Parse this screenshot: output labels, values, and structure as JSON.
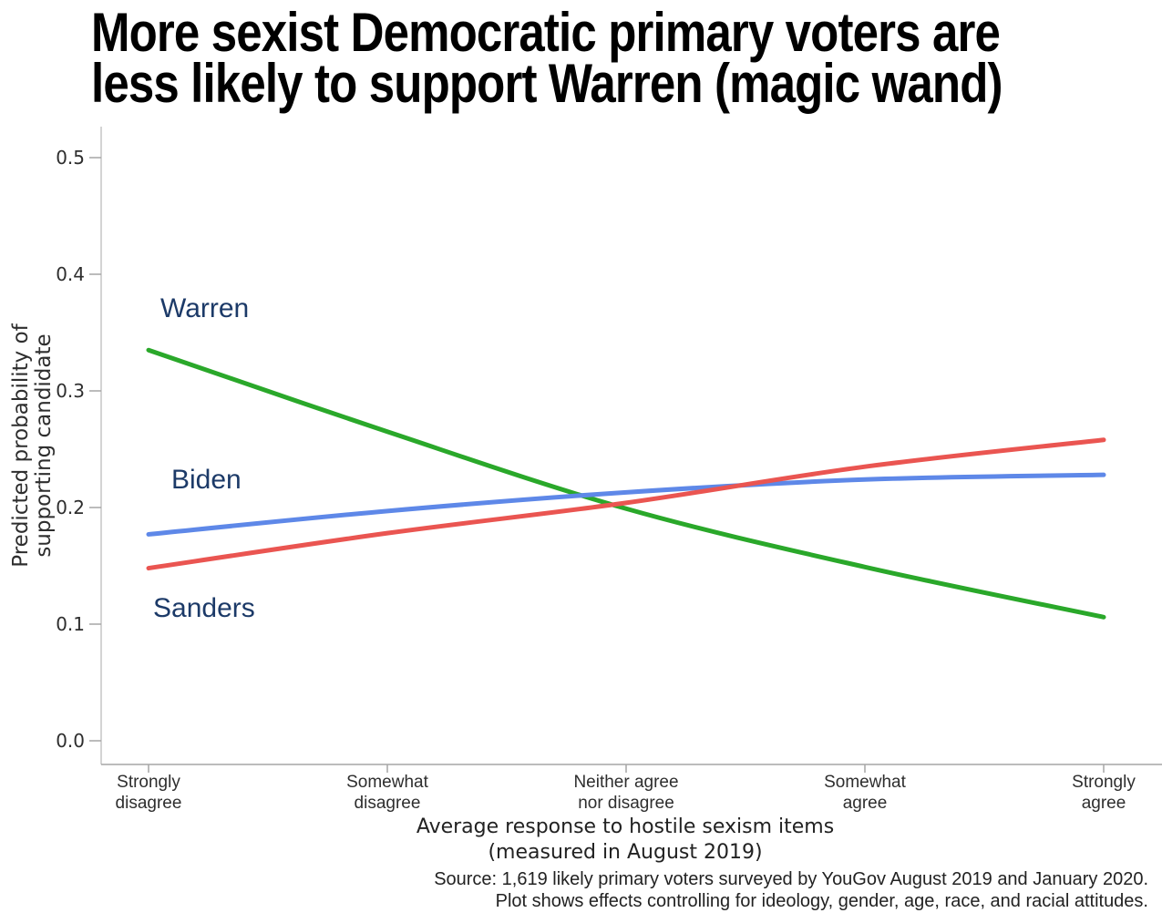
{
  "chart_data": {
    "type": "line",
    "title_lines": [
      "More sexist Democratic primary voters are",
      "less likely to support Warren (magic wand)"
    ],
    "title": "More sexist Democratic primary voters are less likely to support Warren (magic wand)",
    "xlabel_lines": [
      "Average response to hostile sexism items",
      "(measured in August 2019)"
    ],
    "ylabel_lines": [
      "Predicted probability of",
      "supporting candidate"
    ],
    "caption_lines": [
      "Source: 1,619 likely primary voters surveyed by YouGov August 2019 and January 2020.",
      "Plot shows effects controlling for ideology, gender, age, race, and racial attitudes."
    ],
    "categories": [
      "Strongly disagree",
      "Somewhat disagree",
      "Neither agree nor disagree",
      "Somewhat agree",
      "Strongly agree"
    ],
    "yticks": [
      "0.0",
      "0.1",
      "0.2",
      "0.3",
      "0.4",
      "0.5"
    ],
    "ylim": [
      0.0,
      0.52
    ],
    "grid": false,
    "legend": "inline-labels",
    "series": [
      {
        "name": "Warren",
        "color": "#2aa82a",
        "values": [
          0.335,
          0.265,
          0.199,
          0.149,
          0.106
        ]
      },
      {
        "name": "Biden",
        "color": "#5e88e8",
        "values": [
          0.177,
          0.197,
          0.213,
          0.224,
          0.228
        ]
      },
      {
        "name": "Sanders",
        "color": "#ea5551",
        "values": [
          0.148,
          0.178,
          0.204,
          0.235,
          0.258
        ]
      }
    ],
    "colors": {
      "series_label_navy": "#1c3a68",
      "axis_line_vertical": "#d4d4d4",
      "axis_line_horizontal": "#a6a6a6",
      "tick_mark": "#a6a6a6",
      "text": "#2e2e2e",
      "title": "#000000"
    }
  }
}
